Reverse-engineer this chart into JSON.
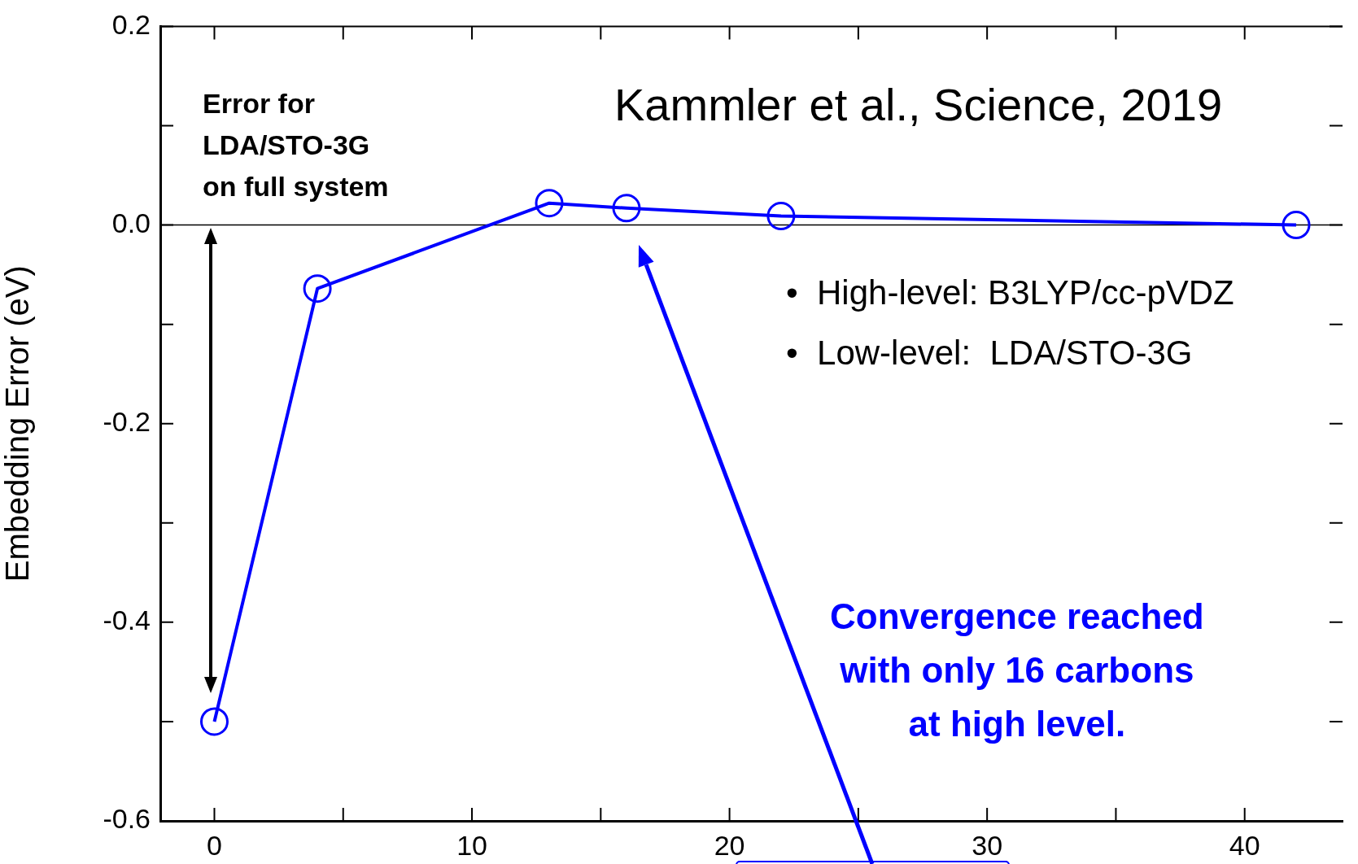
{
  "chart_data": {
    "type": "line",
    "ylabel": "Embedding Error (eV)",
    "x": [
      0,
      4,
      13,
      16,
      22,
      42
    ],
    "series": [
      {
        "color": "#0000ff",
        "values": [
          -0.5,
          -0.064,
          0.022,
          0.017,
          0.009,
          0.0
        ]
      }
    ],
    "xlim": [
      -2.1,
      43.8
    ],
    "xticks": [
      0,
      {
        "value": 5,
        "label": null
      },
      10,
      {
        "value": 15,
        "label": null
      },
      20,
      {
        "value": 25,
        "label": null
      },
      30,
      {
        "value": 35,
        "label": null
      },
      40
    ],
    "ylim": [
      -0.6,
      0.2
    ],
    "yticks": [
      -0.6,
      {
        "value": -0.5,
        "label": null
      },
      -0.4,
      {
        "value": -0.3,
        "label": null
      },
      -0.2,
      {
        "value": -0.1,
        "label": null
      },
      {
        "value": 0,
        "label": "0.0"
      },
      {
        "value": 0.1,
        "label": null
      },
      0.2
    ],
    "ref_lines": [
      {
        "axis": "y",
        "value": 0,
        "color": "#000000"
      }
    ],
    "annotations": [
      "Kammler et al., Science, 2019",
      "Error for\nLDA/STO-3G\non full system",
      "•  High-level: B3LYP/cc-pVDZ",
      "•  Low-level:  LDA/STO-3G",
      "Convergence reached\nwith only 16 carbons\nat high level."
    ],
    "marker": "circle",
    "line_style": "solid",
    "grid": false,
    "legend": false
  }
}
